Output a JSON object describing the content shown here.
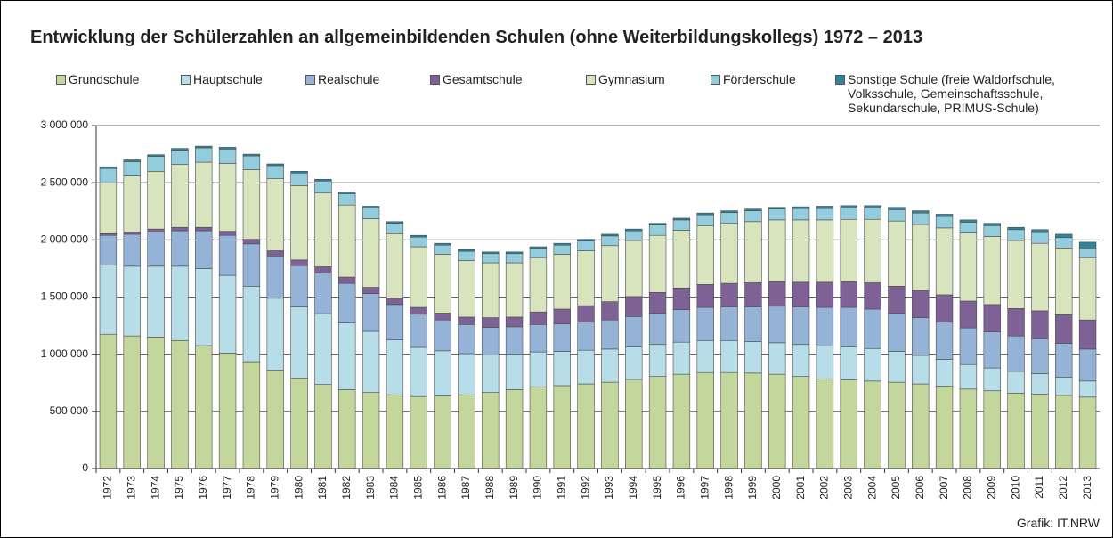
{
  "chart_data": {
    "type": "stacked_bar",
    "title": "Entwicklung der Schülerzahlen an allgemeinbildenden Schulen (ohne Weiterbildungskollegs) 1972 – 2013",
    "source": "Grafik: IT.NRW",
    "categories": [
      "1972",
      "1973",
      "1974",
      "1975",
      "1976",
      "1977",
      "1978",
      "1979",
      "1980",
      "1981",
      "1982",
      "1983",
      "1984",
      "1985",
      "1986",
      "1987",
      "1988",
      "1989",
      "1990",
      "1991",
      "1992",
      "1993",
      "1994",
      "1995",
      "1996",
      "1997",
      "1998",
      "1999",
      "2000",
      "2001",
      "2002",
      "2003",
      "2004",
      "2005",
      "2006",
      "2007",
      "2008",
      "2009",
      "2010",
      "2011",
      "2012",
      "2013"
    ],
    "series": [
      {
        "name": "Grundschule",
        "color": "#c3d69b",
        "values": [
          1175000,
          1160000,
          1150000,
          1120000,
          1075000,
          1010000,
          935000,
          860000,
          790000,
          735000,
          690000,
          665000,
          645000,
          630000,
          635000,
          645000,
          665000,
          690000,
          715000,
          725000,
          740000,
          755000,
          780000,
          805000,
          825000,
          840000,
          840000,
          835000,
          825000,
          805000,
          785000,
          775000,
          765000,
          755000,
          740000,
          720000,
          695000,
          680000,
          660000,
          650000,
          640000,
          625000
        ]
      },
      {
        "name": "Hauptschule",
        "color": "#b7dee8",
        "values": [
          605000,
          610000,
          620000,
          650000,
          675000,
          680000,
          660000,
          630000,
          625000,
          620000,
          585000,
          535000,
          480000,
          430000,
          395000,
          360000,
          330000,
          310000,
          305000,
          300000,
          295000,
          290000,
          285000,
          280000,
          280000,
          280000,
          280000,
          275000,
          275000,
          280000,
          285000,
          290000,
          285000,
          270000,
          250000,
          235000,
          215000,
          200000,
          190000,
          180000,
          160000,
          140000
        ]
      },
      {
        "name": "Realschule",
        "color": "#95b3d7",
        "values": [
          260000,
          280000,
          300000,
          310000,
          330000,
          350000,
          370000,
          370000,
          360000,
          355000,
          345000,
          330000,
          310000,
          290000,
          270000,
          255000,
          240000,
          240000,
          240000,
          240000,
          245000,
          255000,
          265000,
          275000,
          285000,
          290000,
          295000,
          305000,
          320000,
          330000,
          340000,
          345000,
          345000,
          335000,
          330000,
          325000,
          320000,
          315000,
          310000,
          305000,
          295000,
          280000
        ]
      },
      {
        "name": "Gesamtschule",
        "color": "#7f6295",
        "values": [
          15000,
          20000,
          25000,
          30000,
          30000,
          35000,
          40000,
          45000,
          50000,
          55000,
          55000,
          55000,
          55000,
          60000,
          60000,
          65000,
          85000,
          85000,
          110000,
          130000,
          145000,
          160000,
          175000,
          180000,
          190000,
          200000,
          205000,
          210000,
          215000,
          215000,
          220000,
          225000,
          230000,
          235000,
          235000,
          240000,
          235000,
          240000,
          240000,
          245000,
          250000,
          255000
        ]
      },
      {
        "name": "Gymnasium",
        "color": "#d7e4bd",
        "values": [
          445000,
          490000,
          505000,
          550000,
          570000,
          595000,
          610000,
          630000,
          650000,
          645000,
          630000,
          600000,
          565000,
          530000,
          515000,
          495000,
          480000,
          475000,
          475000,
          480000,
          480000,
          490000,
          490000,
          500000,
          505000,
          515000,
          525000,
          535000,
          540000,
          545000,
          545000,
          545000,
          555000,
          570000,
          580000,
          585000,
          595000,
          595000,
          595000,
          590000,
          585000,
          545000
        ]
      },
      {
        "name": "Förderschule",
        "color": "#93cddd",
        "values": [
          125000,
          125000,
          130000,
          125000,
          125000,
          125000,
          120000,
          115000,
          110000,
          105000,
          100000,
          95000,
          90000,
          85000,
          80000,
          80000,
          80000,
          80000,
          80000,
          80000,
          85000,
          85000,
          85000,
          90000,
          90000,
          95000,
          95000,
          95000,
          95000,
          100000,
          100000,
          100000,
          100000,
          100000,
          100000,
          100000,
          95000,
          95000,
          95000,
          95000,
          90000,
          85000
        ]
      },
      {
        "name": "Sonstige Schule (freie Waldorfschule, Volksschule, Gemeinschaftsschule, Sekundarschule, PRIMUS-Schule)",
        "color": "#31849b",
        "values": [
          15000,
          15000,
          15000,
          15000,
          15000,
          15000,
          15000,
          15000,
          15000,
          15000,
          15000,
          15000,
          15000,
          15000,
          15000,
          15000,
          15000,
          15000,
          15000,
          15000,
          15000,
          15000,
          15000,
          15000,
          15000,
          15000,
          15000,
          15000,
          15000,
          15000,
          20000,
          20000,
          20000,
          20000,
          20000,
          20000,
          20000,
          20000,
          20000,
          25000,
          30000,
          50000
        ]
      }
    ],
    "ylim": [
      0,
      3000000
    ],
    "yticks": [
      0,
      {
        "value": 500000,
        "label": "500 000"
      },
      {
        "value": 1000000,
        "label": "1 000 000"
      },
      {
        "value": 1500000,
        "label": "1 500 000"
      },
      {
        "value": 2000000,
        "label": "2 000 000"
      },
      {
        "value": 2500000,
        "label": "2 500 000"
      },
      {
        "value": 3000000,
        "label": "3 000 000"
      }
    ],
    "grid": true
  }
}
